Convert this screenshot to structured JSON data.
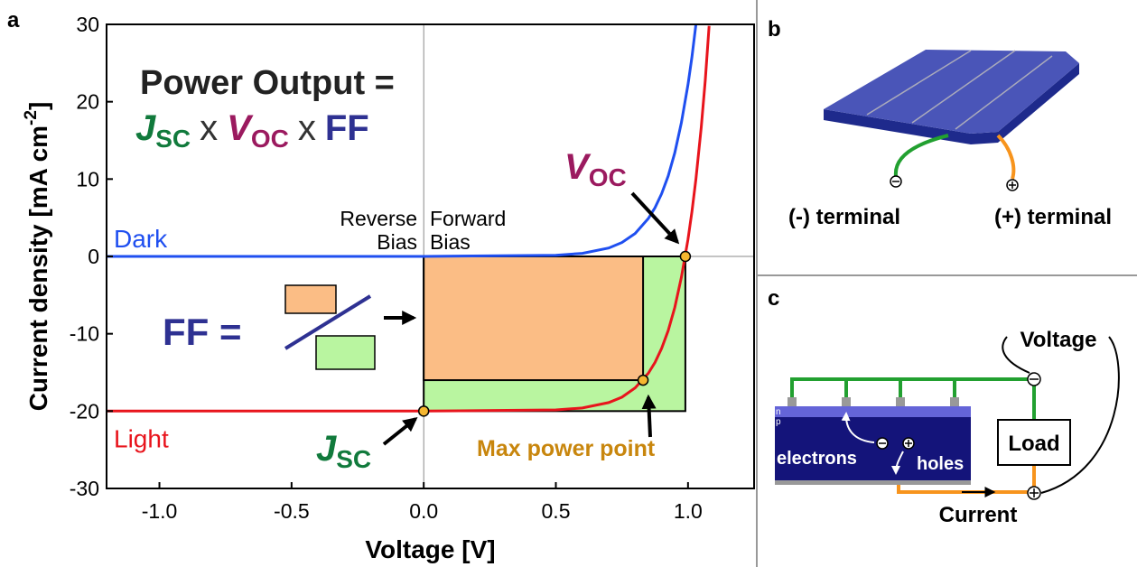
{
  "chart_data": {
    "type": "line",
    "panel": "a",
    "xlabel": "Voltage [V]",
    "ylabel": [
      "Current density [mA cm",
      "-2",
      "]"
    ],
    "xlim": [
      -1.2,
      1.25
    ],
    "ylim": [
      -30,
      30
    ],
    "xticks": [
      {
        "value": -1,
        "label": "-1.0"
      },
      -0.5,
      {
        "value": 0,
        "label": "0.0"
      },
      0.5,
      {
        "value": 1,
        "label": "1.0"
      }
    ],
    "yticks": [
      30,
      20,
      10,
      0,
      -10,
      -20,
      -30
    ],
    "x": [
      -1.2,
      -1.0,
      -0.5,
      0,
      0.5,
      0.6,
      0.7,
      0.75,
      0.8,
      0.85,
      0.875,
      0.9,
      0.925,
      0.95,
      0.975,
      1.0,
      1.015,
      1.03,
      1.05,
      1.065,
      1.08
    ],
    "series": [
      {
        "name": "Dark",
        "color": "#1f4ff0",
        "values": [
          0,
          0,
          0,
          0,
          0.15,
          0.4,
          1.08,
          1.8,
          2.97,
          4.9,
          6.3,
          8.1,
          10.4,
          13.4,
          17.3,
          22.2,
          25.8,
          30,
          null,
          null,
          null
        ]
      },
      {
        "name": "Light",
        "color": "#e8141c",
        "values": [
          -20,
          -20,
          -20,
          -20,
          -19.85,
          -19.6,
          -18.9,
          -18.2,
          -17.0,
          -15.1,
          -13.7,
          -11.9,
          -9.6,
          -6.6,
          -2.7,
          2.2,
          5.8,
          10,
          16.7,
          22.7,
          29.8
        ]
      }
    ],
    "markers": {
      "x": [
        0,
        0.83,
        0.99
      ],
      "y": [
        -20,
        -16,
        0
      ],
      "color": "#f5b630"
    },
    "annotations": {
      "power_output": "Power Output =",
      "jsc": [
        "J",
        "SC"
      ],
      "times": "x",
      "voc": [
        "V",
        "OC"
      ],
      "ff": "FF",
      "ff_eq": "FF =",
      "reverse": [
        "Reverse",
        "Bias"
      ],
      "forward": [
        "Forward",
        "Bias"
      ],
      "max_power": "Max power point"
    }
  },
  "panel_b": {
    "label": "b",
    "terminals": [
      "(-) terminal",
      "(+) terminal"
    ]
  },
  "panel_c": {
    "label": "c",
    "voltage": "Voltage",
    "load": "Load",
    "layers": [
      "n",
      "p"
    ],
    "electrons": "electrons",
    "holes": "holes",
    "current": "Current"
  }
}
